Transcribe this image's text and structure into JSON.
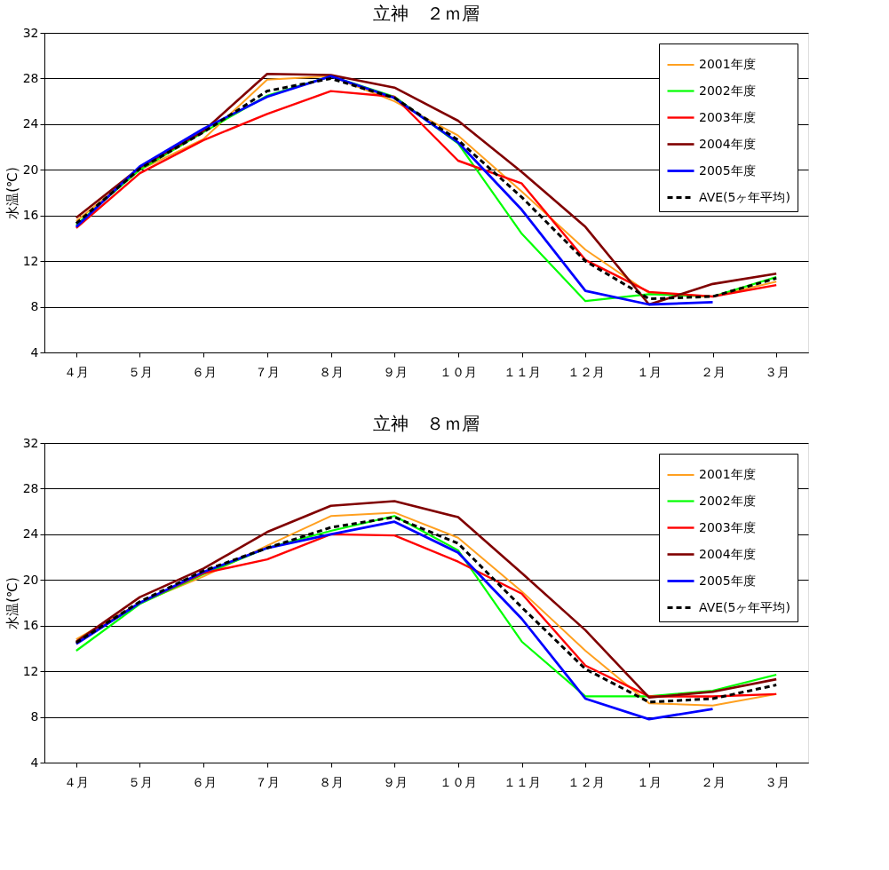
{
  "chart_data": [
    {
      "type": "line",
      "title": "立神　２ｍ層",
      "ylabel": "水温(℃)",
      "categories": [
        "４月",
        "５月",
        "６月",
        "７月",
        "８月",
        "９月",
        "１０月",
        "１１月",
        "１２月",
        "１月",
        "２月",
        "３月"
      ],
      "ylim": [
        4,
        32
      ],
      "yticks": [
        4,
        8,
        12,
        16,
        20,
        24,
        28,
        32
      ],
      "grid": "y",
      "legend": "top right",
      "series": [
        {
          "name": "2001年度",
          "color": "#ffa020",
          "line_style": "solid",
          "values": [
            15.5,
            20.0,
            22.7,
            27.9,
            28.2,
            26.0,
            23.0,
            18.1,
            13.0,
            9.2,
            8.9,
            10.2
          ]
        },
        {
          "name": "2002年度",
          "color": "#00ff00",
          "line_style": "solid",
          "values": [
            15.2,
            20.0,
            23.3,
            26.5,
            28.2,
            26.4,
            22.3,
            14.4,
            8.5,
            9.1,
            8.9,
            10.6
          ]
        },
        {
          "name": "2003年度",
          "color": "#ff0000",
          "line_style": "solid",
          "values": [
            14.9,
            19.7,
            22.6,
            24.9,
            26.9,
            26.4,
            20.8,
            18.8,
            12.1,
            9.3,
            8.9,
            9.9
          ]
        },
        {
          "name": "2004年度",
          "color": "#800000",
          "line_style": "solid",
          "values": [
            15.8,
            20.2,
            23.4,
            28.4,
            28.3,
            27.2,
            24.3,
            19.8,
            15.0,
            8.2,
            10.0,
            10.9
          ]
        },
        {
          "name": "2005年度",
          "color": "#0000ff",
          "line_style": "solid",
          "values": [
            15.0,
            20.3,
            23.6,
            26.4,
            28.2,
            26.3,
            22.4,
            16.5,
            9.4,
            8.2,
            8.4,
            null
          ]
        },
        {
          "name": "AVE(5ヶ年平均)",
          "color": "#000000",
          "line_style": "dashed",
          "values": [
            15.3,
            20.1,
            23.3,
            26.9,
            28.0,
            26.3,
            22.6,
            17.6,
            12.0,
            8.7,
            8.9,
            10.5
          ]
        }
      ]
    },
    {
      "type": "line",
      "title": "立神　８ｍ層",
      "ylabel": "水温(℃)",
      "categories": [
        "４月",
        "５月",
        "６月",
        "７月",
        "８月",
        "９月",
        "１０月",
        "１１月",
        "１２月",
        "１月",
        "２月",
        "３月"
      ],
      "ylim": [
        4,
        32
      ],
      "yticks": [
        4,
        8,
        12,
        16,
        20,
        24,
        28,
        32
      ],
      "grid": "y",
      "legend": "top right",
      "series": [
        {
          "name": "2001年度",
          "color": "#ffa020",
          "line_style": "solid",
          "values": [
            14.8,
            18.0,
            20.3,
            23.0,
            25.6,
            25.9,
            23.7,
            19.0,
            13.8,
            9.2,
            9.0,
            10.0
          ]
        },
        {
          "name": "2002年度",
          "color": "#00ff00",
          "line_style": "solid",
          "values": [
            13.8,
            17.9,
            20.5,
            22.8,
            24.3,
            25.6,
            22.6,
            14.6,
            9.8,
            9.8,
            10.3,
            11.7
          ]
        },
        {
          "name": "2003年度",
          "color": "#ff0000",
          "line_style": "solid",
          "values": [
            14.5,
            18.0,
            20.6,
            21.8,
            24.0,
            23.9,
            21.6,
            18.8,
            12.5,
            9.8,
            9.8,
            10.0
          ]
        },
        {
          "name": "2004年度",
          "color": "#800000",
          "line_style": "solid",
          "values": [
            14.6,
            18.5,
            21.0,
            24.2,
            26.5,
            26.9,
            25.5,
            20.6,
            15.6,
            9.7,
            10.2,
            11.3
          ]
        },
        {
          "name": "2005年度",
          "color": "#0000ff",
          "line_style": "solid",
          "values": [
            14.4,
            18.0,
            20.7,
            22.8,
            24.0,
            25.1,
            22.4,
            16.6,
            9.6,
            7.8,
            8.7,
            null
          ]
        },
        {
          "name": "AVE(5ヶ年平均)",
          "color": "#000000",
          "line_style": "dashed",
          "values": [
            14.5,
            18.1,
            20.8,
            22.8,
            24.6,
            25.5,
            23.2,
            17.6,
            12.2,
            9.3,
            9.6,
            10.8
          ]
        }
      ]
    }
  ]
}
